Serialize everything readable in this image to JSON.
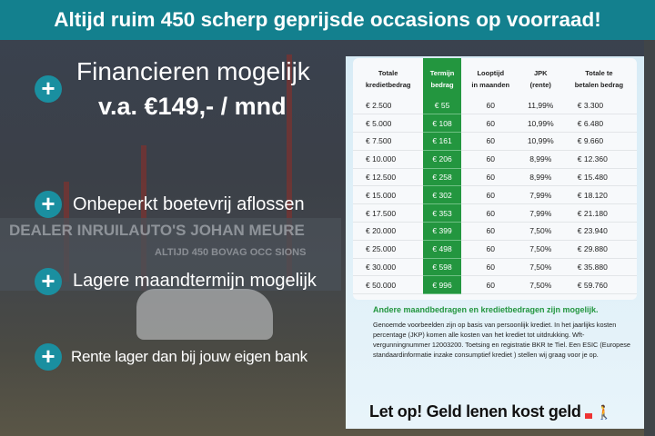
{
  "header": {
    "title": "Altijd ruim 450 scherp geprijsde occasions op voorraad!"
  },
  "background": {
    "sign_text": "DEALER INRUILAUTO'S JOHAN MEURE",
    "sign_text_2": "ALTIJD 450 BOVAG OCC SIONS"
  },
  "left": {
    "headline": "Financieren mogelijk",
    "price": "v.a. €149,- / mnd",
    "bullets": [
      "Onbeperkt boetevrij aflossen",
      "Lagere maandtermijn mogelijk",
      "Rente lager dan bij jouw eigen bank"
    ],
    "icon": "plus-icon"
  },
  "table": {
    "headers": [
      [
        "Totale",
        "kredietbedrag"
      ],
      [
        "Termijn",
        "bedrag"
      ],
      [
        "Looptijd",
        "in maanden"
      ],
      [
        "JPK",
        "(rente)"
      ],
      [
        "Totale te",
        "betalen bedrag"
      ]
    ],
    "rows": [
      [
        "€ 2.500",
        "€ 55",
        "60",
        "11,99%",
        "€ 3.300"
      ],
      [
        "€ 5.000",
        "€ 108",
        "60",
        "10,99%",
        "€ 6.480"
      ],
      [
        "€ 7.500",
        "€ 161",
        "60",
        "10,99%",
        "€ 9.660"
      ],
      [
        "€ 10.000",
        "€ 206",
        "60",
        "8,99%",
        "€ 12.360"
      ],
      [
        "€ 12.500",
        "€ 258",
        "60",
        "8,99%",
        "€ 15.480"
      ],
      [
        "€ 15.000",
        "€ 302",
        "60",
        "7,99%",
        "€ 18.120"
      ],
      [
        "€ 17.500",
        "€ 353",
        "60",
        "7,99%",
        "€ 21.180"
      ],
      [
        "€ 20.000",
        "€ 399",
        "60",
        "7,50%",
        "€ 23.940"
      ],
      [
        "€ 25.000",
        "€ 498",
        "60",
        "7,50%",
        "€ 29.880"
      ],
      [
        "€ 30.000",
        "€ 598",
        "60",
        "7,50%",
        "€ 35.880"
      ],
      [
        "€ 50.000",
        "€ 996",
        "60",
        "7,50%",
        "€ 59.760"
      ]
    ],
    "highlight_color": "#23963f"
  },
  "note": {
    "heading": "Andere maandbedragen en kredietbedragen zijn mogelijk.",
    "text": "Genoemde voorbeelden zijn op basis van persoonlijk krediet. In het jaarlijks kosten percentage (JKP) komen alle kosten van het krediet tot uitdrukking. Wft-vergunningnummer 12003200. Toetsing en registratie BKR te Tiel. Een ESIC (Europese standaardinformatie inzake consumptief krediet ) stellen wij graag voor je op.",
    "warning": "Let op! Geld lenen kost geld"
  }
}
